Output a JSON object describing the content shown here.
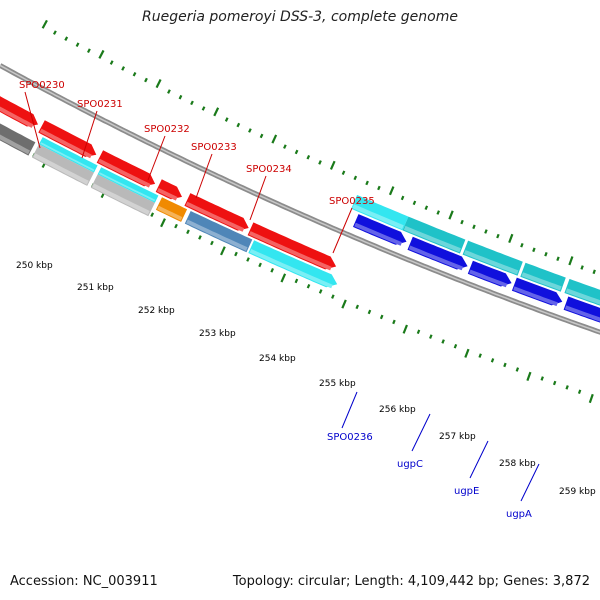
{
  "title": "Ruegeria pomeroyi DSS-3, complete genome",
  "footer": {
    "accession": "Accession: NC_003911",
    "summary": "Topology: circular; Length: 4,109,442 bp; Genes: 3,872"
  },
  "colors": {
    "background": "#ffffff",
    "backbone": "#8c8c8c",
    "tick": "#1a7a1a",
    "label_red": "#cc0000",
    "label_blue": "#0000cc"
  },
  "ruler": {
    "unit": "kbp",
    "tick_labels": [
      "250 kbp",
      "251 kbp",
      "252 kbp",
      "253 kbp",
      "254 kbp",
      "255 kbp",
      "256 kbp",
      "257 kbp",
      "258 kbp",
      "259 kbp"
    ]
  },
  "gene_labels": [
    {
      "name": "SPO0230",
      "color": "label_red"
    },
    {
      "name": "SPO0231",
      "color": "label_red"
    },
    {
      "name": "SPO0232",
      "color": "label_red"
    },
    {
      "name": "SPO0233",
      "color": "label_red"
    },
    {
      "name": "SPO0234",
      "color": "label_red"
    },
    {
      "name": "SPO0235",
      "color": "label_red"
    },
    {
      "name": "SPO0236",
      "color": "label_blue"
    },
    {
      "name": "ugpC",
      "color": "label_blue"
    },
    {
      "name": "ugpE",
      "color": "label_blue"
    },
    {
      "name": "ugpA",
      "color": "label_blue"
    }
  ],
  "feature_colors": {
    "gray": "#6e6e6e",
    "lightgray": "#b9b9b9",
    "cyan": "#33e6f0",
    "red": "#ee1111",
    "orange": "#f08a00",
    "steelblue": "#4f86b8",
    "blue": "#1010dd",
    "teal": "#1fc2c8"
  }
}
